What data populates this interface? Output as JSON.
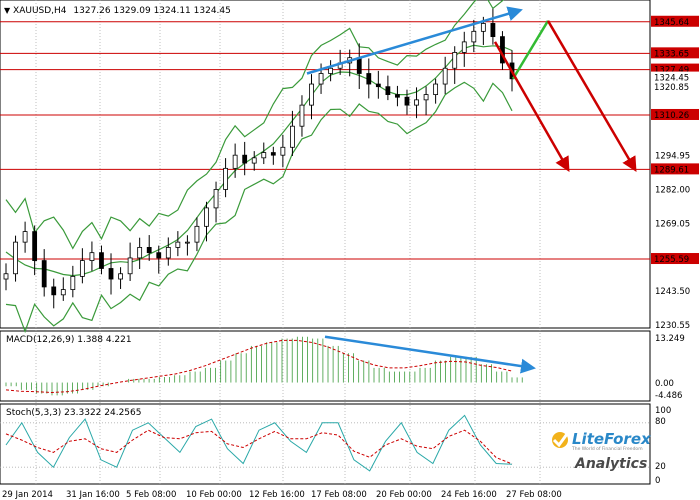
{
  "header": {
    "symbol_label": "XAUUSD,H4",
    "ohlc": "1327.26 1329.09 1324.11 1324.45"
  },
  "macd_panel": {
    "label": "MACD(12,26,9) 1.388 4.221",
    "axis_top": "13.249",
    "axis_zero": "0.00",
    "axis_bottom": "-4.486"
  },
  "stoch_panel": {
    "label": "Stoch(5,3,3) 23.3322 24.2565",
    "axis_100": "100",
    "axis_80": "80",
    "axis_20": "20",
    "axis_0": "0"
  },
  "price_axis": {
    "ticks": [
      "1294.95",
      "1282.00",
      "1269.05",
      "1243.50",
      "1230.55"
    ],
    "levels": [
      {
        "value": "1345.64",
        "color": "#cc0000"
      },
      {
        "value": "1333.65",
        "color": "#cc0000"
      },
      {
        "value": "1327.49",
        "color": "#cc0000"
      },
      {
        "value": "1324.45",
        "color": "#000000"
      },
      {
        "value": "1320.85",
        "color": "#000000"
      },
      {
        "value": "1310.26",
        "color": "#cc0000"
      },
      {
        "value": "1289.61",
        "color": "#cc0000"
      },
      {
        "value": "1255.59",
        "color": "#cc0000"
      }
    ]
  },
  "x_axis": {
    "labels": [
      "29 Jan 2014",
      "31 Jan 16:00",
      "5 Feb 08:00",
      "10 Feb 00:00",
      "12 Feb 16:00",
      "17 Feb 08:00",
      "20 Feb 00:00",
      "24 Feb 16:00",
      "27 Feb 08:00"
    ]
  },
  "logo": {
    "brand": "LiteForex",
    "tagline": "The World of Financial Freedom",
    "sub": "Analytics"
  },
  "colors": {
    "band": "#3a9a3a",
    "support_resistance": "#cc0000",
    "trend_up": "#2a8ad8",
    "forecast_green": "#33bb33",
    "forecast_red": "#cc0000",
    "macd_hist": "#3a9a3a",
    "signal": "#cc0000",
    "stoch_main": "#2aa8a8",
    "stoch_signal": "#cc0000"
  },
  "chart_data": {
    "type": "candlestick",
    "title": "XAUUSD,H4",
    "ylim": [
      1230.55,
      1360
    ],
    "support_resistance": [
      1345.64,
      1333.65,
      1327.49,
      1310.26,
      1289.61,
      1255.59
    ],
    "close_path": [
      1250,
      1262,
      1266,
      1255,
      1245,
      1242,
      1244,
      1249,
      1255,
      1258,
      1252,
      1248,
      1250,
      1256,
      1260,
      1258,
      1256,
      1260,
      1262,
      1262,
      1268,
      1275,
      1282,
      1290,
      1295,
      1292,
      1294,
      1296,
      1295,
      1298,
      1306,
      1314,
      1322,
      1326,
      1328,
      1330,
      1332,
      1326,
      1322,
      1321,
      1318,
      1317,
      1314,
      1316,
      1318,
      1322,
      1328,
      1334,
      1338,
      1342,
      1345,
      1340,
      1330,
      1324
    ],
    "macd": [
      -1,
      -2,
      -3,
      -3.5,
      -3,
      -2,
      -1,
      0,
      1,
      1,
      1.5,
      2,
      3,
      4,
      6,
      8,
      10,
      11,
      12,
      12.5,
      12,
      10,
      8,
      6,
      4,
      3,
      3,
      4,
      6,
      7,
      7,
      5,
      3,
      1.4
    ],
    "stoch": [
      50,
      80,
      40,
      20,
      60,
      85,
      30,
      20,
      70,
      80,
      60,
      40,
      75,
      85,
      45,
      25,
      70,
      80,
      55,
      40,
      80,
      80,
      30,
      15,
      55,
      80,
      40,
      25,
      70,
      90,
      50,
      25,
      24
    ]
  }
}
